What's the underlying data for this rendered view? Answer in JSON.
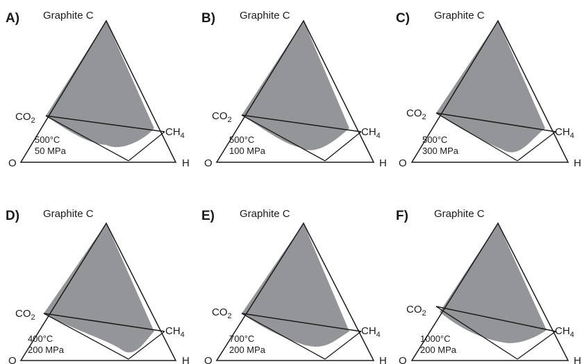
{
  "figure": {
    "panels": [
      {
        "letter": "A)",
        "label_top": "Graphite  C",
        "label_left": "O",
        "label_right": "H",
        "label_co2": "CO",
        "co2_sub": "2",
        "label_ch4": "CH",
        "ch4_sub": "4",
        "temperature": "500°C",
        "pressure": "50 MPa"
      },
      {
        "letter": "B)",
        "label_top": "Graphite  C",
        "label_left": "O",
        "label_right": "H",
        "label_co2": "CO",
        "co2_sub": "2",
        "label_ch4": "CH",
        "ch4_sub": "4",
        "temperature": "500°C",
        "pressure": "100 MPa"
      },
      {
        "letter": "C)",
        "label_top": "Graphite  C",
        "label_left": "O",
        "label_right": "H",
        "label_co2": "CO",
        "co2_sub": "2",
        "label_ch4": "CH",
        "ch4_sub": "4",
        "temperature": "500°C",
        "pressure": "300 MPa"
      },
      {
        "letter": "D)",
        "label_top": "Graphite  C",
        "label_left": "O",
        "label_right": "H",
        "label_co2": "CO",
        "co2_sub": "2",
        "label_ch4": "CH",
        "ch4_sub": "4",
        "temperature": "400°C",
        "pressure": "200 MPa"
      },
      {
        "letter": "E)",
        "label_top": "Graphite  C",
        "label_left": "O",
        "label_right": "H",
        "label_co2": "CO",
        "co2_sub": "2",
        "label_ch4": "CH",
        "ch4_sub": "4",
        "temperature": "700°C",
        "pressure": "200 MPa"
      },
      {
        "letter": "F)",
        "label_top": "Graphite  C",
        "label_left": "O",
        "label_right": "H",
        "label_co2": "CO",
        "co2_sub": "2",
        "label_ch4": "CH",
        "ch4_sub": "4",
        "temperature": "1000°C",
        "pressure": "200 MPa"
      }
    ],
    "colors": {
      "graphite_field": "#939598",
      "outline": "#1a1a1a",
      "background": "#ffffff"
    }
  }
}
